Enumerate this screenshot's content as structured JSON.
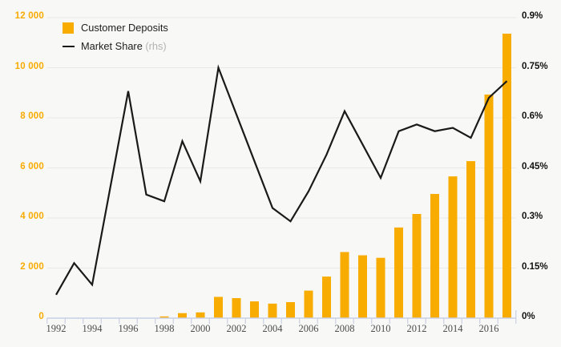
{
  "legend": {
    "deposits_label": "Customer Deposits",
    "market_share_label": "Market Share",
    "market_share_suffix": " (rhs)"
  },
  "colors": {
    "background": "#f8f8f6",
    "bar": "#f8ac00",
    "line": "#1a1a1a",
    "gridline": "#e8e8e5",
    "axis": "#c9cfe5",
    "left_axis_text": "#f8ab00",
    "right_axis_text": "#111111",
    "x_axis_text": "#4d4d4d"
  },
  "chart_data": {
    "type": "bar",
    "title": "",
    "x": [
      1992,
      1993,
      1994,
      1995,
      1996,
      1997,
      1998,
      1999,
      2000,
      2001,
      2002,
      2003,
      2004,
      2005,
      2006,
      2007,
      2008,
      2009,
      2010,
      2011,
      2012,
      2013,
      2014,
      2015,
      2016,
      2017
    ],
    "x_tick_labels": [
      "1992",
      "1994",
      "1996",
      "1998",
      "2000",
      "2002",
      "2004",
      "2006",
      "2008",
      "2010",
      "2012",
      "2014",
      "2016"
    ],
    "series": [
      {
        "name": "Customer Deposits",
        "type": "bar",
        "axis": "left",
        "values": [
          null,
          null,
          null,
          null,
          null,
          null,
          70,
          200,
          230,
          850,
          800,
          670,
          580,
          640,
          1100,
          1660,
          2640,
          2510,
          2410,
          3620,
          4160,
          4960,
          5660,
          6270,
          8930,
          11360
        ]
      },
      {
        "name": "Market Share (rhs)",
        "type": "line",
        "axis": "right",
        "values": [
          0.07,
          0.165,
          0.1,
          0.39,
          0.68,
          0.37,
          0.35,
          0.53,
          0.41,
          0.75,
          0.61,
          0.47,
          0.33,
          0.29,
          0.38,
          0.49,
          0.62,
          0.52,
          0.42,
          0.56,
          0.58,
          0.56,
          0.57,
          0.54,
          0.66,
          0.71
        ]
      }
    ],
    "left_axis": {
      "min": 0,
      "max": 12000,
      "tick_step": 2000,
      "tick_labels": [
        "0",
        "2 000",
        "4 000",
        "6 000",
        "8 000",
        "10 000",
        "12 000"
      ]
    },
    "right_axis": {
      "min": 0,
      "max": 0.9,
      "tick_step": 0.15,
      "tick_labels": [
        "0%",
        "0.15%",
        "0.3%",
        "0.45%",
        "0.6%",
        "0.75%",
        "0.9%"
      ]
    },
    "grid": true,
    "legend_position": "top-left"
  }
}
